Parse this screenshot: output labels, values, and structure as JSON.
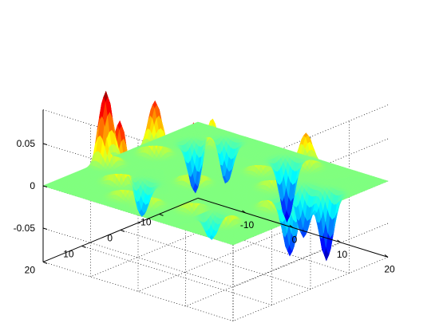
{
  "chart_data": {
    "type": "surface",
    "title": "",
    "xlabel": "",
    "ylabel": "",
    "zlabel": "",
    "xlim": [
      -20,
      20
    ],
    "ylim": [
      -20,
      20
    ],
    "zlim": [
      -0.09,
      0.09
    ],
    "grid": true,
    "colormap": "jet",
    "x_ticks": [
      {
        "value": -10,
        "label": "-10"
      },
      {
        "value": 0,
        "label": "0"
      },
      {
        "value": 10,
        "label": "10"
      },
      {
        "value": 20,
        "label": "20"
      }
    ],
    "y_ticks": [
      {
        "value": 20,
        "label": "20"
      },
      {
        "value": 10,
        "label": "10"
      },
      {
        "value": 0,
        "label": "0"
      },
      {
        "value": -10,
        "label": "-10"
      }
    ],
    "z_ticks": [
      {
        "value": 0.05,
        "label": "0.05"
      },
      {
        "value": 0,
        "label": "0"
      },
      {
        "value": -0.05,
        "label": "-0.05"
      }
    ],
    "peaks": [
      {
        "x": -19,
        "y": 5,
        "z": 0.085
      },
      {
        "x": -12,
        "y": 10,
        "z": 0.072
      },
      {
        "x": -16,
        "y": -4,
        "z": 0.062
      },
      {
        "x": 12,
        "y": 13,
        "z": 0.085
      },
      {
        "x": 14,
        "y": 2,
        "z": 0.058
      },
      {
        "x": -3,
        "y": 2,
        "z": 0.07
      },
      {
        "x": -12,
        "y": -14,
        "z": 0.04
      },
      {
        "x": 6,
        "y": -16,
        "z": 0.04
      },
      {
        "x": 8,
        "y": -5,
        "z": 0.03
      },
      {
        "x": -7,
        "y": 15,
        "z": 0.03
      },
      {
        "x": -2,
        "y": 15,
        "z": 0.035
      },
      {
        "x": 5,
        "y": 12,
        "z": 0.03
      },
      {
        "x": 2,
        "y": -9,
        "z": 0.025
      },
      {
        "x": -14,
        "y": -12,
        "z": -0.06
      },
      {
        "x": -11,
        "y": -16,
        "z": -0.055
      },
      {
        "x": 2,
        "y": -16,
        "z": -0.072
      },
      {
        "x": 14,
        "y": -2,
        "z": -0.065
      },
      {
        "x": 12,
        "y": -8,
        "z": -0.058
      },
      {
        "x": 16,
        "y": -9,
        "z": -0.08
      },
      {
        "x": -9,
        "y": 8,
        "z": -0.04
      },
      {
        "x": 9,
        "y": 12,
        "z": -0.03
      }
    ]
  }
}
